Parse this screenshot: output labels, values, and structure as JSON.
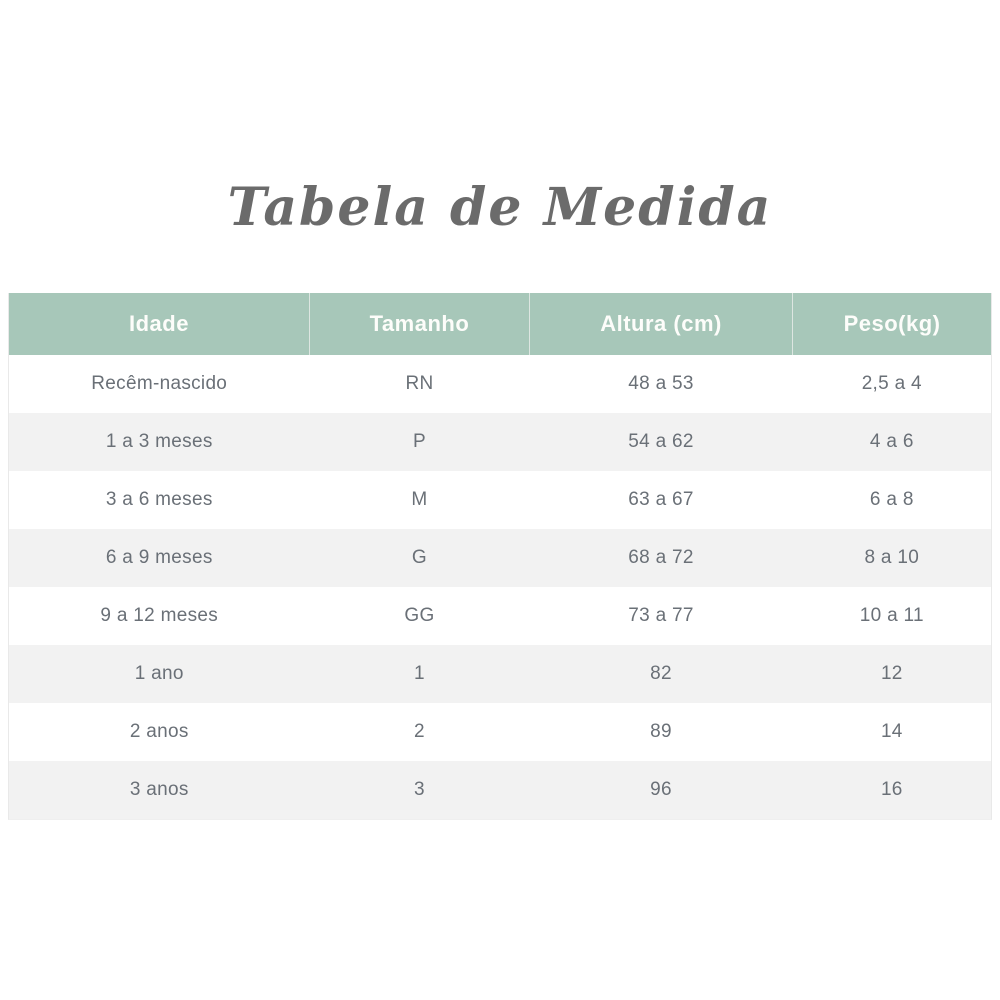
{
  "title": "Tabela de Medida",
  "table": {
    "headers": [
      "Idade",
      "Tamanho",
      "Altura (cm)",
      "Peso(kg)"
    ],
    "rows": [
      [
        "Recêm-nascido",
        "RN",
        "48 a 53",
        "2,5 a 4"
      ],
      [
        "1 a 3 meses",
        "P",
        "54 a 62",
        "4 a 6"
      ],
      [
        "3 a 6 meses",
        "M",
        "63 a 67",
        "6 a 8"
      ],
      [
        "6 a 9 meses",
        "G",
        "68 a 72",
        "8 a 10"
      ],
      [
        "9 a 12 meses",
        "GG",
        "73 a 77",
        "10 a 11"
      ],
      [
        "1 ano",
        "1",
        "82",
        "12"
      ],
      [
        "2 anos",
        "2",
        "89",
        "14"
      ],
      [
        "3 anos",
        "3",
        "96",
        "16"
      ]
    ]
  },
  "colors": {
    "header_bg": "#a7c7b9",
    "header_text": "#ffffff",
    "row_alt_bg": "#f2f2f2",
    "body_text": "#6a7077",
    "title_text": "#6b6b6b"
  }
}
